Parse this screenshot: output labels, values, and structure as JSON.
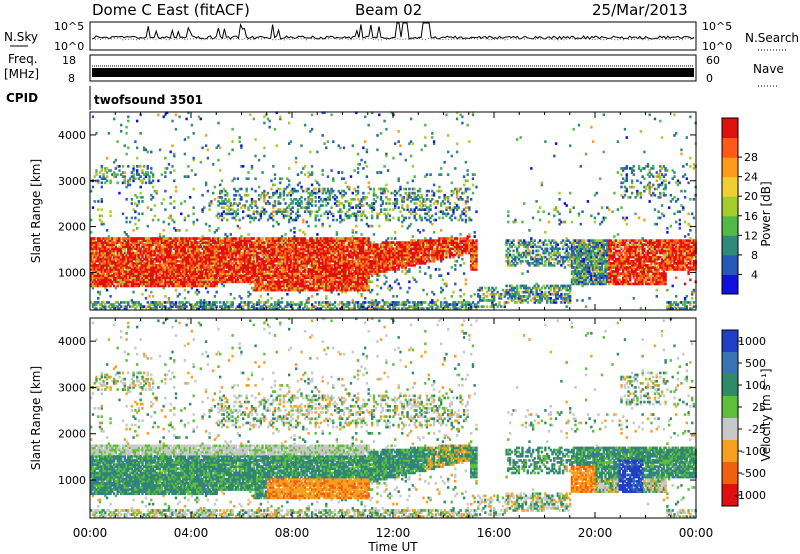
{
  "header": {
    "radar_title": "Dome C East (fitACF)",
    "beam": "Beam 02",
    "date": "25/Mar/2013"
  },
  "nsky_panel": {
    "left_label": "N.Sky",
    "left_ticks": [
      "10^5",
      "10^0"
    ],
    "right_ticks": [
      "10^5",
      "10^0"
    ],
    "right_label": "N.Search"
  },
  "freq_panel": {
    "label_line1": "Freq.",
    "label_line2": "[MHz]",
    "left_ticks": [
      "18",
      "8"
    ],
    "right_ticks": [
      "60",
      "0"
    ],
    "right_label": "Nave"
  },
  "cpid_panel": {
    "label": "CPID",
    "value": "twofsound 3501"
  },
  "chart_data": [
    {
      "type": "heatmap",
      "name": "power",
      "ylabel": "Slant Range [km]",
      "yticks": [
        1000,
        2000,
        3000,
        4000
      ],
      "ylim": [
        180,
        4500
      ],
      "xlim": [
        0,
        24
      ],
      "colorbar": {
        "label": "Power [dB]",
        "ticks": [
          "4",
          "8",
          "12",
          "16",
          "20",
          "24",
          "28"
        ],
        "colors": [
          "#1010e0",
          "#2858b8",
          "#2f8a7a",
          "#52b848",
          "#a6cc2c",
          "#f0d030",
          "#ff9a1a",
          "#ff5818",
          "#e01010"
        ]
      }
    },
    {
      "type": "heatmap",
      "name": "velocity",
      "ylabel": "Slant Range [km]",
      "yticks": [
        1000,
        2000,
        3000,
        4000
      ],
      "ylim": [
        180,
        4500
      ],
      "xlim": [
        0,
        24
      ],
      "xlabel": "Time UT",
      "xticks": [
        "00:00",
        "04:00",
        "08:00",
        "12:00",
        "16:00",
        "20:00",
        "00:00"
      ],
      "colorbar": {
        "label": "Velocity [m s⁻¹]",
        "ticks": [
          "1000",
          "500",
          "100",
          "25",
          "-25",
          "-100",
          "-500",
          "-1000"
        ],
        "colors": [
          "#2040c8",
          "#3a74b0",
          "#2f8a6a",
          "#5fbf3a",
          "#c8c8c8",
          "#f5a020",
          "#f06010",
          "#e01010"
        ]
      }
    }
  ]
}
